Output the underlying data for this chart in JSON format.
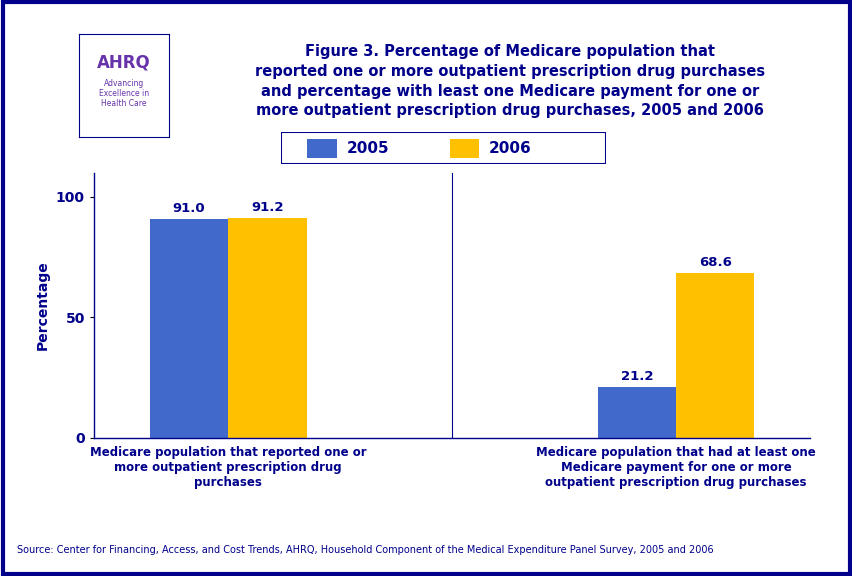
{
  "title": "Figure 3. Percentage of Medicare population that\nreported one or more outpatient prescription drug purchases\nand percentage with least one Medicare payment for one or\nmore outpatient prescription drug purchases, 2005 and 2006",
  "categories": [
    "Medicare population that reported one or\nmore outpatient prescription drug\npurchases",
    "Medicare population that had at least one\nMedicare payment for one or more\noutpatient prescription drug purchases"
  ],
  "values_2005": [
    91.0,
    21.2
  ],
  "values_2006": [
    91.2,
    68.6
  ],
  "labels_2005": [
    "91.0",
    "21.2"
  ],
  "labels_2006": [
    "91.2",
    "68.6"
  ],
  "color_2005": "#4169CB",
  "color_2006": "#FFC000",
  "ylabel": "Percentage",
  "yticks": [
    0,
    50,
    100
  ],
  "ylim": [
    0,
    110
  ],
  "legend_labels": [
    "2005",
    "2006"
  ],
  "source_text": "Source: Center for Financing, Access, and Cost Trends, AHRQ, Household Component of the Medical Expenditure Panel Survey, 2005 and 2006",
  "title_color": "#00008B",
  "axis_label_color": "#00008B",
  "tick_label_color": "#00008B",
  "bar_label_color": "#00008B",
  "source_color": "#00008B",
  "background_color": "#FFFFFF",
  "border_color": "#00008B",
  "separator_line_color": "#00008B",
  "bar_width": 0.35,
  "group_positions": [
    1,
    3
  ],
  "header_bg": "#FFFFFF",
  "logo_bg": "#4499CC",
  "logo_right_bg": "#FFFFFF",
  "ahrq_text_color": "#6633AA",
  "ahrq_sub_color": "#6633AA"
}
